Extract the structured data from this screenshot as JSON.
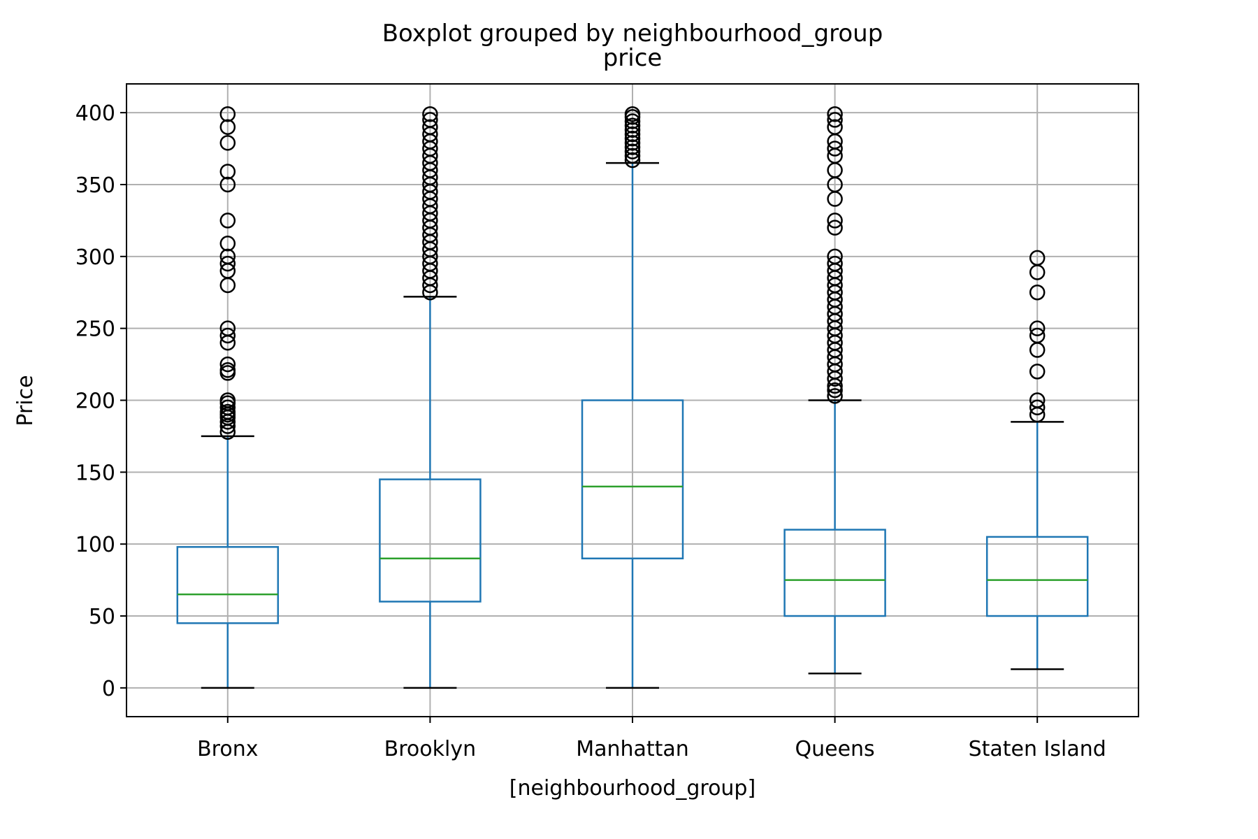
{
  "chart_data": {
    "type": "box",
    "suptitle": "Boxplot grouped by neighbourhood_group",
    "title": "price",
    "xlabel": "[neighbourhood_group]",
    "ylabel": "Price",
    "ylim": [
      -20,
      420
    ],
    "yticks": [
      0,
      50,
      100,
      150,
      200,
      250,
      300,
      350,
      400
    ],
    "grid": true,
    "colors": {
      "box": "#1f77b4",
      "median": "#2ca02c",
      "whisker": "#1f77b4",
      "cap": "#000000",
      "flier": "#000000",
      "grid": "#b0b0b0"
    },
    "categories": [
      "Bronx",
      "Brooklyn",
      "Manhattan",
      "Queens",
      "Staten Island"
    ],
    "boxes": [
      {
        "name": "Bronx",
        "whisker_low": 0,
        "q1": 45,
        "median": 65,
        "q3": 98,
        "whisker_high": 175,
        "fliers": [
          178,
          182,
          185,
          188,
          190,
          192,
          195,
          198,
          200,
          219,
          221,
          225,
          240,
          245,
          250,
          280,
          290,
          295,
          300,
          309,
          325,
          350,
          359,
          379,
          390,
          399
        ]
      },
      {
        "name": "Brooklyn",
        "whisker_low": 0,
        "q1": 60,
        "median": 90,
        "q3": 145,
        "whisker_high": 272,
        "fliers": [
          275,
          280,
          285,
          290,
          295,
          300,
          305,
          310,
          315,
          320,
          325,
          330,
          335,
          340,
          345,
          350,
          355,
          360,
          365,
          370,
          375,
          380,
          385,
          390,
          395,
          399
        ]
      },
      {
        "name": "Manhattan",
        "whisker_low": 0,
        "q1": 90,
        "median": 140,
        "q3": 200,
        "whisker_high": 365,
        "fliers": [
          367,
          370,
          373,
          376,
          379,
          382,
          385,
          388,
          391,
          394,
          397,
          399
        ]
      },
      {
        "name": "Queens",
        "whisker_low": 10,
        "q1": 50,
        "median": 75,
        "q3": 110,
        "whisker_high": 200,
        "fliers": [
          203,
          207,
          210,
          215,
          220,
          225,
          230,
          235,
          240,
          245,
          250,
          255,
          260,
          265,
          270,
          275,
          280,
          285,
          290,
          295,
          300,
          320,
          325,
          340,
          350,
          360,
          370,
          375,
          380,
          390,
          395,
          399
        ]
      },
      {
        "name": "Staten Island",
        "whisker_low": 13,
        "q1": 50,
        "median": 75,
        "q3": 105,
        "whisker_high": 185,
        "fliers": [
          190,
          195,
          200,
          220,
          235,
          245,
          250,
          275,
          289,
          299
        ]
      }
    ]
  }
}
